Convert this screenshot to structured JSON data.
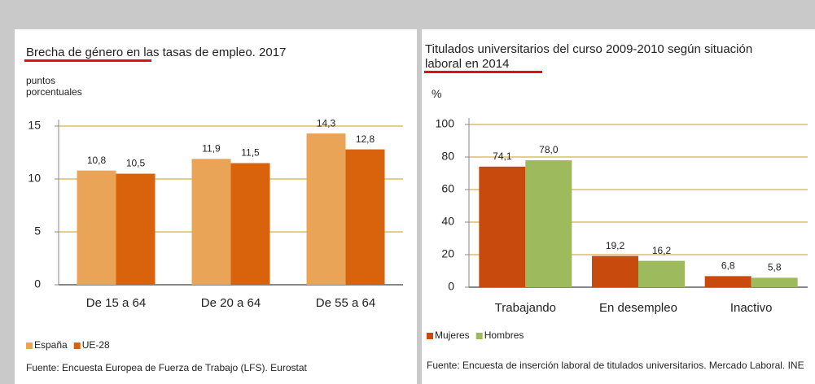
{
  "chart_data": [
    {
      "type": "bar",
      "title": "Brecha de género en las tasas de empleo. 2017",
      "y_label": "puntos porcentuales",
      "categories": [
        "De 15 a 64",
        "De 20 a 64",
        "De 55 a 64"
      ],
      "series": [
        {
          "name": "España",
          "color": "#e9a458",
          "values": [
            10.8,
            11.9,
            14.3
          ],
          "value_labels": [
            "10,8",
            "11,9",
            "14,3"
          ]
        },
        {
          "name": "UE-28",
          "color": "#d9620c",
          "values": [
            10.5,
            11.5,
            12.8
          ],
          "value_labels": [
            "10,5",
            "11,5",
            "12,8"
          ]
        }
      ],
      "ylim": [
        0,
        15
      ],
      "yticks": [
        0,
        5,
        10,
        15
      ],
      "grid": true,
      "source": "Fuente: Encuesta Europea de Fuerza de Trabajo (LFS). Eurostat"
    },
    {
      "type": "bar",
      "title": "Titulados universitarios del curso 2009-2010 según situación laboral en 2014",
      "y_label": "%",
      "categories": [
        "Trabajando",
        "En desempleo",
        "Inactivo"
      ],
      "series": [
        {
          "name": "Mujeres",
          "color": "#c84a0c",
          "values": [
            74.1,
            19.2,
            6.8
          ],
          "value_labels": [
            "74,1",
            "19,2",
            "6,8"
          ]
        },
        {
          "name": "Hombres",
          "color": "#9dbb5c",
          "values": [
            78.0,
            16.2,
            5.8
          ],
          "value_labels": [
            "78,0",
            "16,2",
            "5,8"
          ]
        }
      ],
      "ylim": [
        0,
        100
      ],
      "yticks": [
        0,
        20,
        40,
        60,
        80,
        100
      ],
      "grid": true,
      "source": "Fuente:  Encuesta de inserción laboral de titulados universitarios. Mercado Laboral. INE"
    }
  ]
}
